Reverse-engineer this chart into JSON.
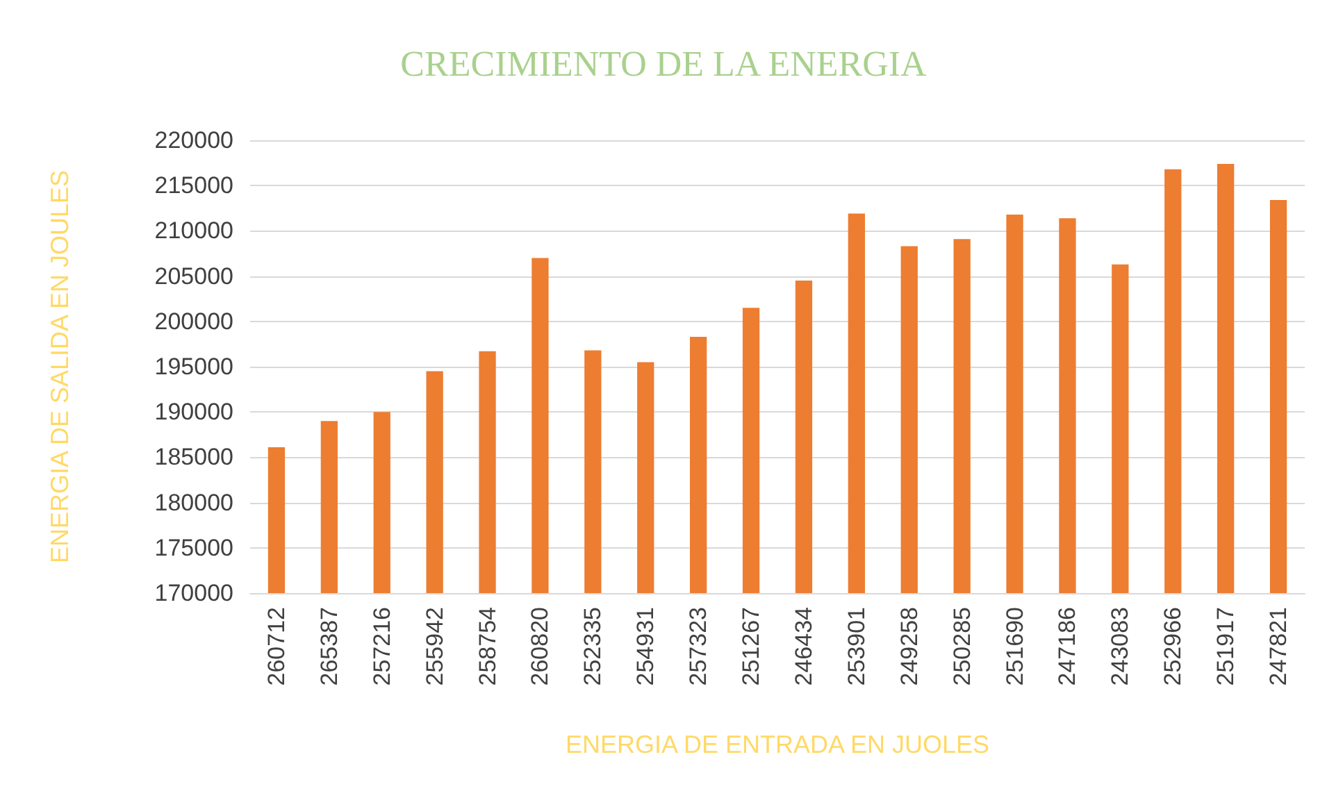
{
  "chart_data": {
    "type": "bar",
    "title": "CRECIMIENTO DE LA ENERGIA",
    "xlabel": "ENERGIA DE ENTRADA EN JUOLES",
    "ylabel": "ENERGIA DE SALIDA EN JOULES",
    "categories": [
      "260712",
      "265387",
      "257216",
      "255942",
      "258754",
      "260820",
      "252335",
      "254931",
      "257323",
      "251267",
      "246434",
      "253901",
      "249258",
      "250285",
      "251690",
      "247186",
      "243083",
      "252966",
      "251917",
      "247821"
    ],
    "series": [
      {
        "color": "#ed7d31",
        "values": [
          186100,
          189000,
          190000,
          194500,
          196700,
          207000,
          196800,
          195500,
          198300,
          201500,
          204500,
          211900,
          208300,
          209100,
          211800,
          211400,
          206300,
          216800,
          217400,
          213400
        ]
      }
    ],
    "ylim": [
      170000,
      220000
    ],
    "yticks": [
      170000,
      175000,
      180000,
      185000,
      190000,
      195000,
      200000,
      205000,
      210000,
      215000,
      220000
    ],
    "grid": "y"
  }
}
